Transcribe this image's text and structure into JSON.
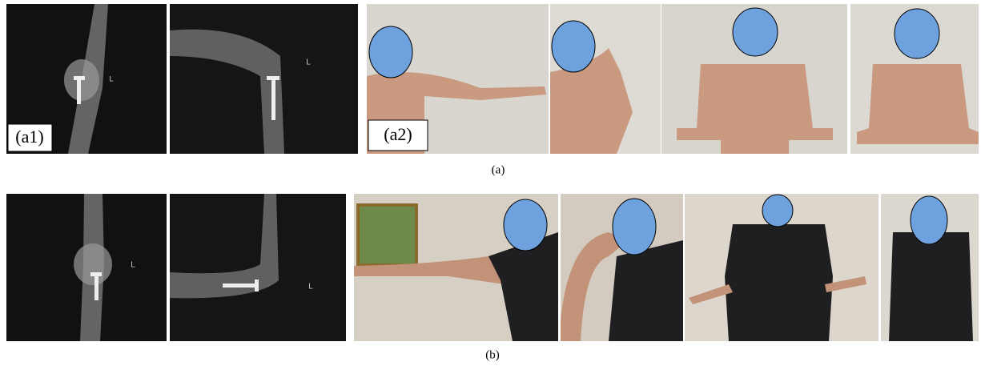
{
  "figure": {
    "a": {
      "labels": [
        "(a1)",
        "(a2)"
      ],
      "caption": "(a)"
    },
    "b": {
      "caption": "(b)"
    },
    "xray_marker": "L"
  }
}
